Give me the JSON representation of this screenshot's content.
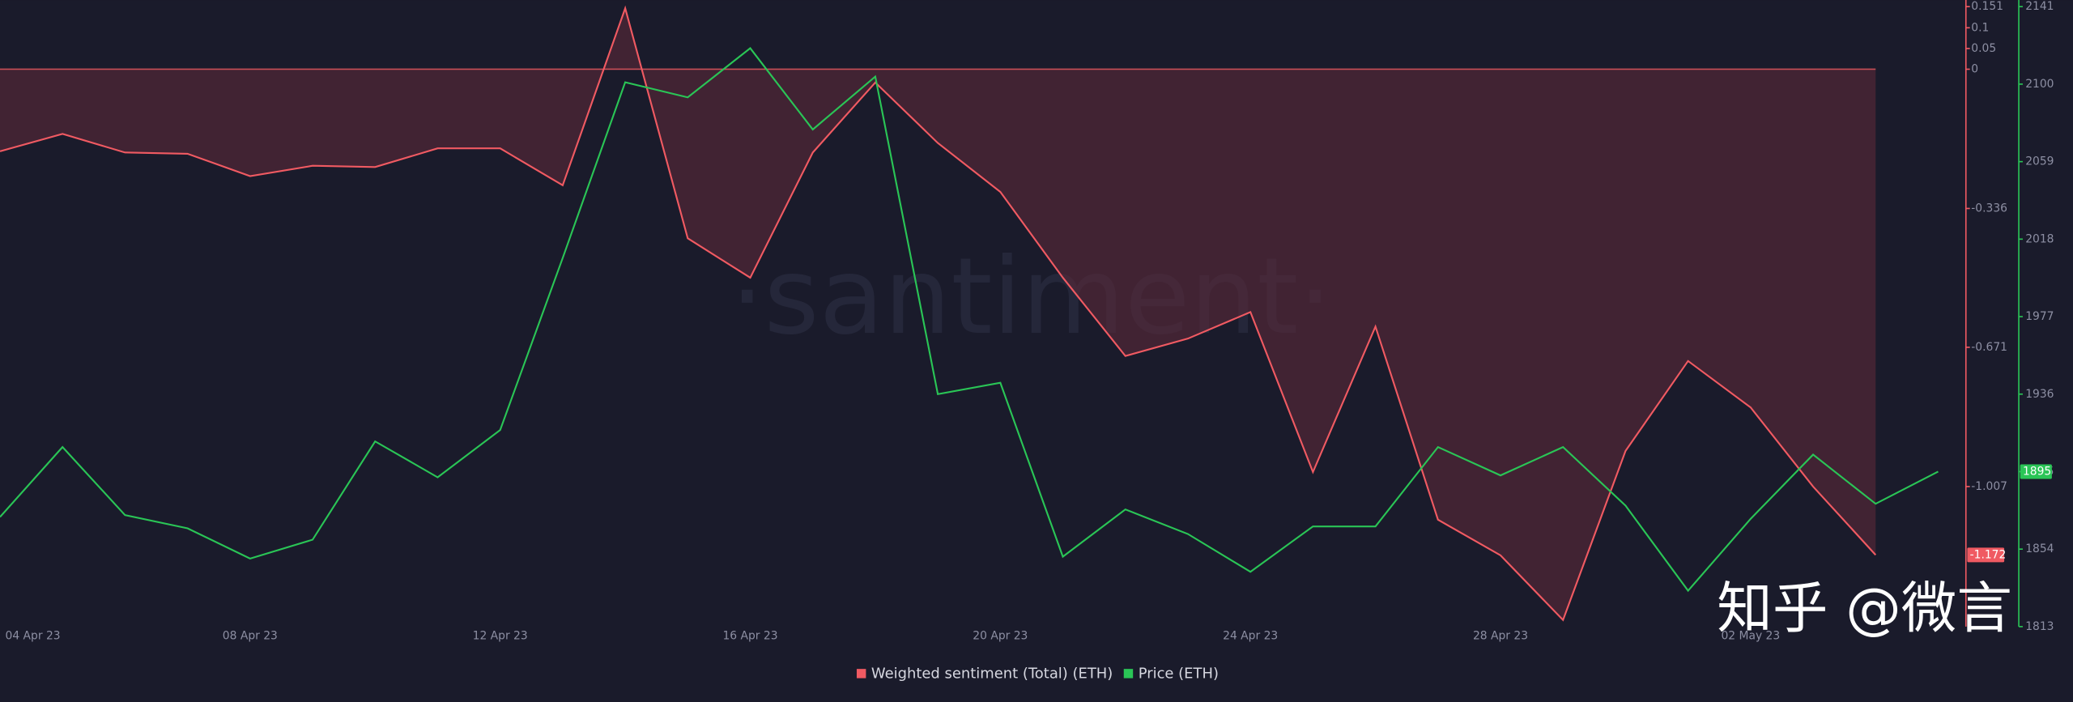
{
  "chart_data": {
    "type": "line",
    "watermark": "·santiment·",
    "corner_text": "知乎 @微言",
    "categories": [
      "04 Apr 23",
      null,
      null,
      null,
      "08 Apr 23",
      null,
      null,
      null,
      "12 Apr 23",
      null,
      null,
      null,
      "16 Apr 23",
      null,
      null,
      null,
      "20 Apr 23",
      null,
      null,
      null,
      "24 Apr 23",
      null,
      null,
      null,
      "28 Apr 23",
      null,
      null,
      null,
      "02 May 23",
      null,
      null,
      null
    ],
    "series": [
      {
        "name": "Weighted sentiment (Total) (ETH)",
        "color": "#f05a62",
        "axis": "y",
        "values": [
          -0.198,
          -0.156,
          -0.201,
          -0.204,
          -0.258,
          -0.233,
          -0.236,
          -0.191,
          -0.191,
          -0.28,
          0.147,
          -0.408,
          -0.503,
          -0.201,
          -0.032,
          -0.178,
          -0.296,
          -0.503,
          -0.692,
          -0.65,
          -0.586,
          -0.972,
          -0.621,
          -1.087,
          -1.173,
          -1.329,
          -0.921,
          -0.704,
          -0.816,
          -1.007,
          -1.172,
          null
        ]
      },
      {
        "name": "Price (ETH)",
        "color": "#2ac556",
        "axis": "y2",
        "values": [
          1871,
          1908,
          1872,
          1865,
          1849,
          1859,
          1911,
          1892,
          1917,
          2008,
          2101,
          2093,
          2119,
          2076,
          2104,
          1936,
          1942,
          1850,
          1875,
          1862,
          1842,
          1866,
          1866,
          1908,
          1893,
          1908,
          1877,
          1832,
          1870,
          1904,
          1878,
          1895
        ]
      }
    ],
    "ylim": [
      -1.345,
      0.151
    ],
    "yticks": [
      0.151,
      0.1,
      0.05,
      0,
      -0.336,
      -0.671,
      -1.007
    ],
    "y2lim": [
      1813,
      2141
    ],
    "y2ticks": [
      1813,
      1854,
      1895,
      1936,
      1977,
      2018,
      2059,
      2100,
      2141
    ],
    "grid": false,
    "legend": "bottom"
  }
}
